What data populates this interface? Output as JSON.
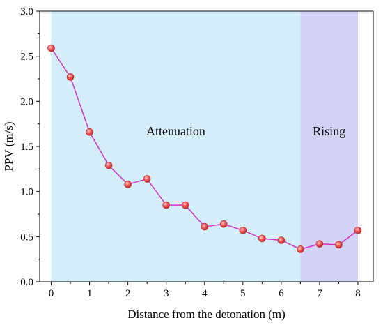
{
  "chart_data": {
    "type": "line",
    "xlabel": "Distance from the detonation (m)",
    "ylabel": "PPV (m/s)",
    "xlim": [
      -0.3,
      8.4
    ],
    "ylim": [
      0.0,
      3.0
    ],
    "x_ticks": [
      0,
      1,
      2,
      3,
      4,
      5,
      6,
      7,
      8
    ],
    "y_ticks": [
      "0.0",
      "0.5",
      "1.0",
      "1.5",
      "2.0",
      "2.5",
      "3.0"
    ],
    "grid": false,
    "regions": [
      {
        "label": "Attenuation",
        "x_start": 0,
        "x_end": 6.5,
        "color": "#d4eefb"
      },
      {
        "label": "Rising",
        "x_start": 6.5,
        "x_end": 8,
        "color": "#d3d3f7"
      }
    ],
    "series": [
      {
        "x": [
          0,
          0.5,
          1,
          1.5,
          2,
          2.5,
          3,
          3.5,
          4,
          4.5,
          5,
          5.5,
          6,
          6.5,
          7,
          7.5,
          8
        ],
        "values": [
          2.59,
          2.27,
          1.66,
          1.29,
          1.08,
          1.14,
          0.85,
          0.85,
          0.61,
          0.64,
          0.57,
          0.48,
          0.46,
          0.36,
          0.42,
          0.41,
          0.57
        ],
        "line_color": "#cc33cc",
        "marker_color": "#f05a5a"
      }
    ]
  }
}
